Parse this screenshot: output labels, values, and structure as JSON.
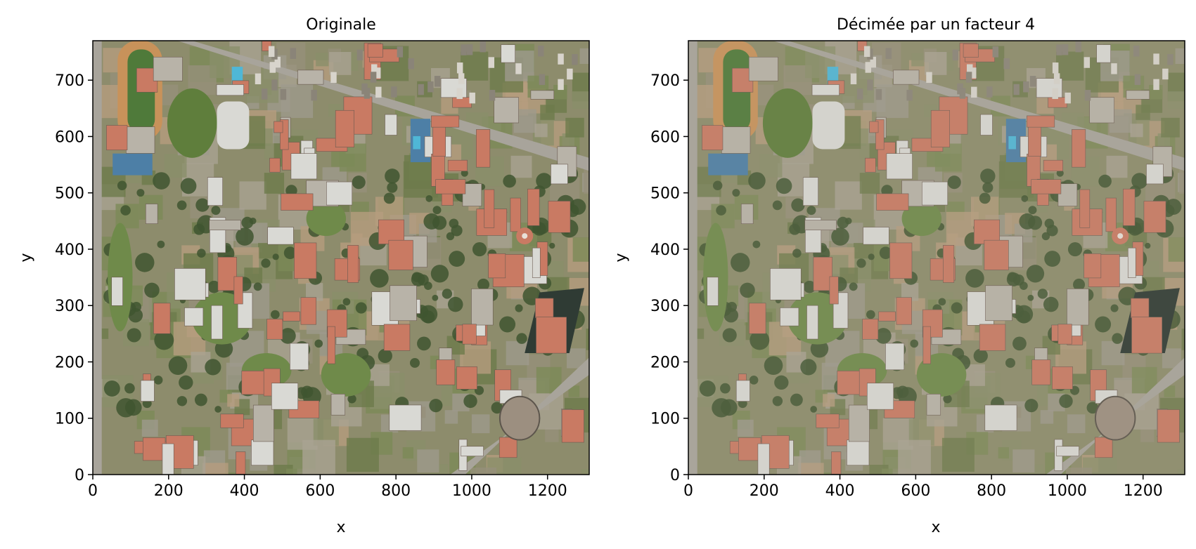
{
  "chart_data": [
    {
      "type": "image",
      "title": "Originale",
      "xlabel": "x",
      "ylabel": "y",
      "xlim": [
        0,
        1310
      ],
      "ylim": [
        0,
        770
      ],
      "xticks": [
        0,
        200,
        400,
        600,
        800,
        1000,
        1200
      ],
      "yticks": [
        0,
        100,
        200,
        300,
        400,
        500,
        600,
        700
      ],
      "xtick_labels": [
        "0",
        "200",
        "400",
        "600",
        "800",
        "1000",
        "1200"
      ],
      "ytick_labels": [
        "0",
        "100",
        "200",
        "300",
        "400",
        "500",
        "600",
        "700"
      ],
      "image": "aerial photograph of a university campus",
      "grid": false
    },
    {
      "type": "image",
      "title": "Décimée par un facteur 4",
      "xlabel": "x",
      "ylabel": "y",
      "xlim": [
        0,
        1310
      ],
      "ylim": [
        0,
        770
      ],
      "xticks": [
        0,
        200,
        400,
        600,
        800,
        1000,
        1200
      ],
      "yticks": [
        0,
        100,
        200,
        300,
        400,
        500,
        600,
        700
      ],
      "xtick_labels": [
        "0",
        "200",
        "400",
        "600",
        "800",
        "1000",
        "1200"
      ],
      "ytick_labels": [
        "0",
        "100",
        "200",
        "300",
        "400",
        "500",
        "600",
        "700"
      ],
      "image": "aerial photograph of a university campus, decimated by a factor of 4",
      "grid": false
    }
  ],
  "colors": {
    "grass": "#6f8a4a",
    "trees": "#3f5530",
    "roof_red": "#c97a63",
    "roof_white": "#d9d9d4",
    "pavement": "#a8a49b",
    "track": "#c8925a",
    "pool": "#4fb7d6",
    "tennis": "#4d7fa6",
    "dark_field": "#2f3b34"
  }
}
